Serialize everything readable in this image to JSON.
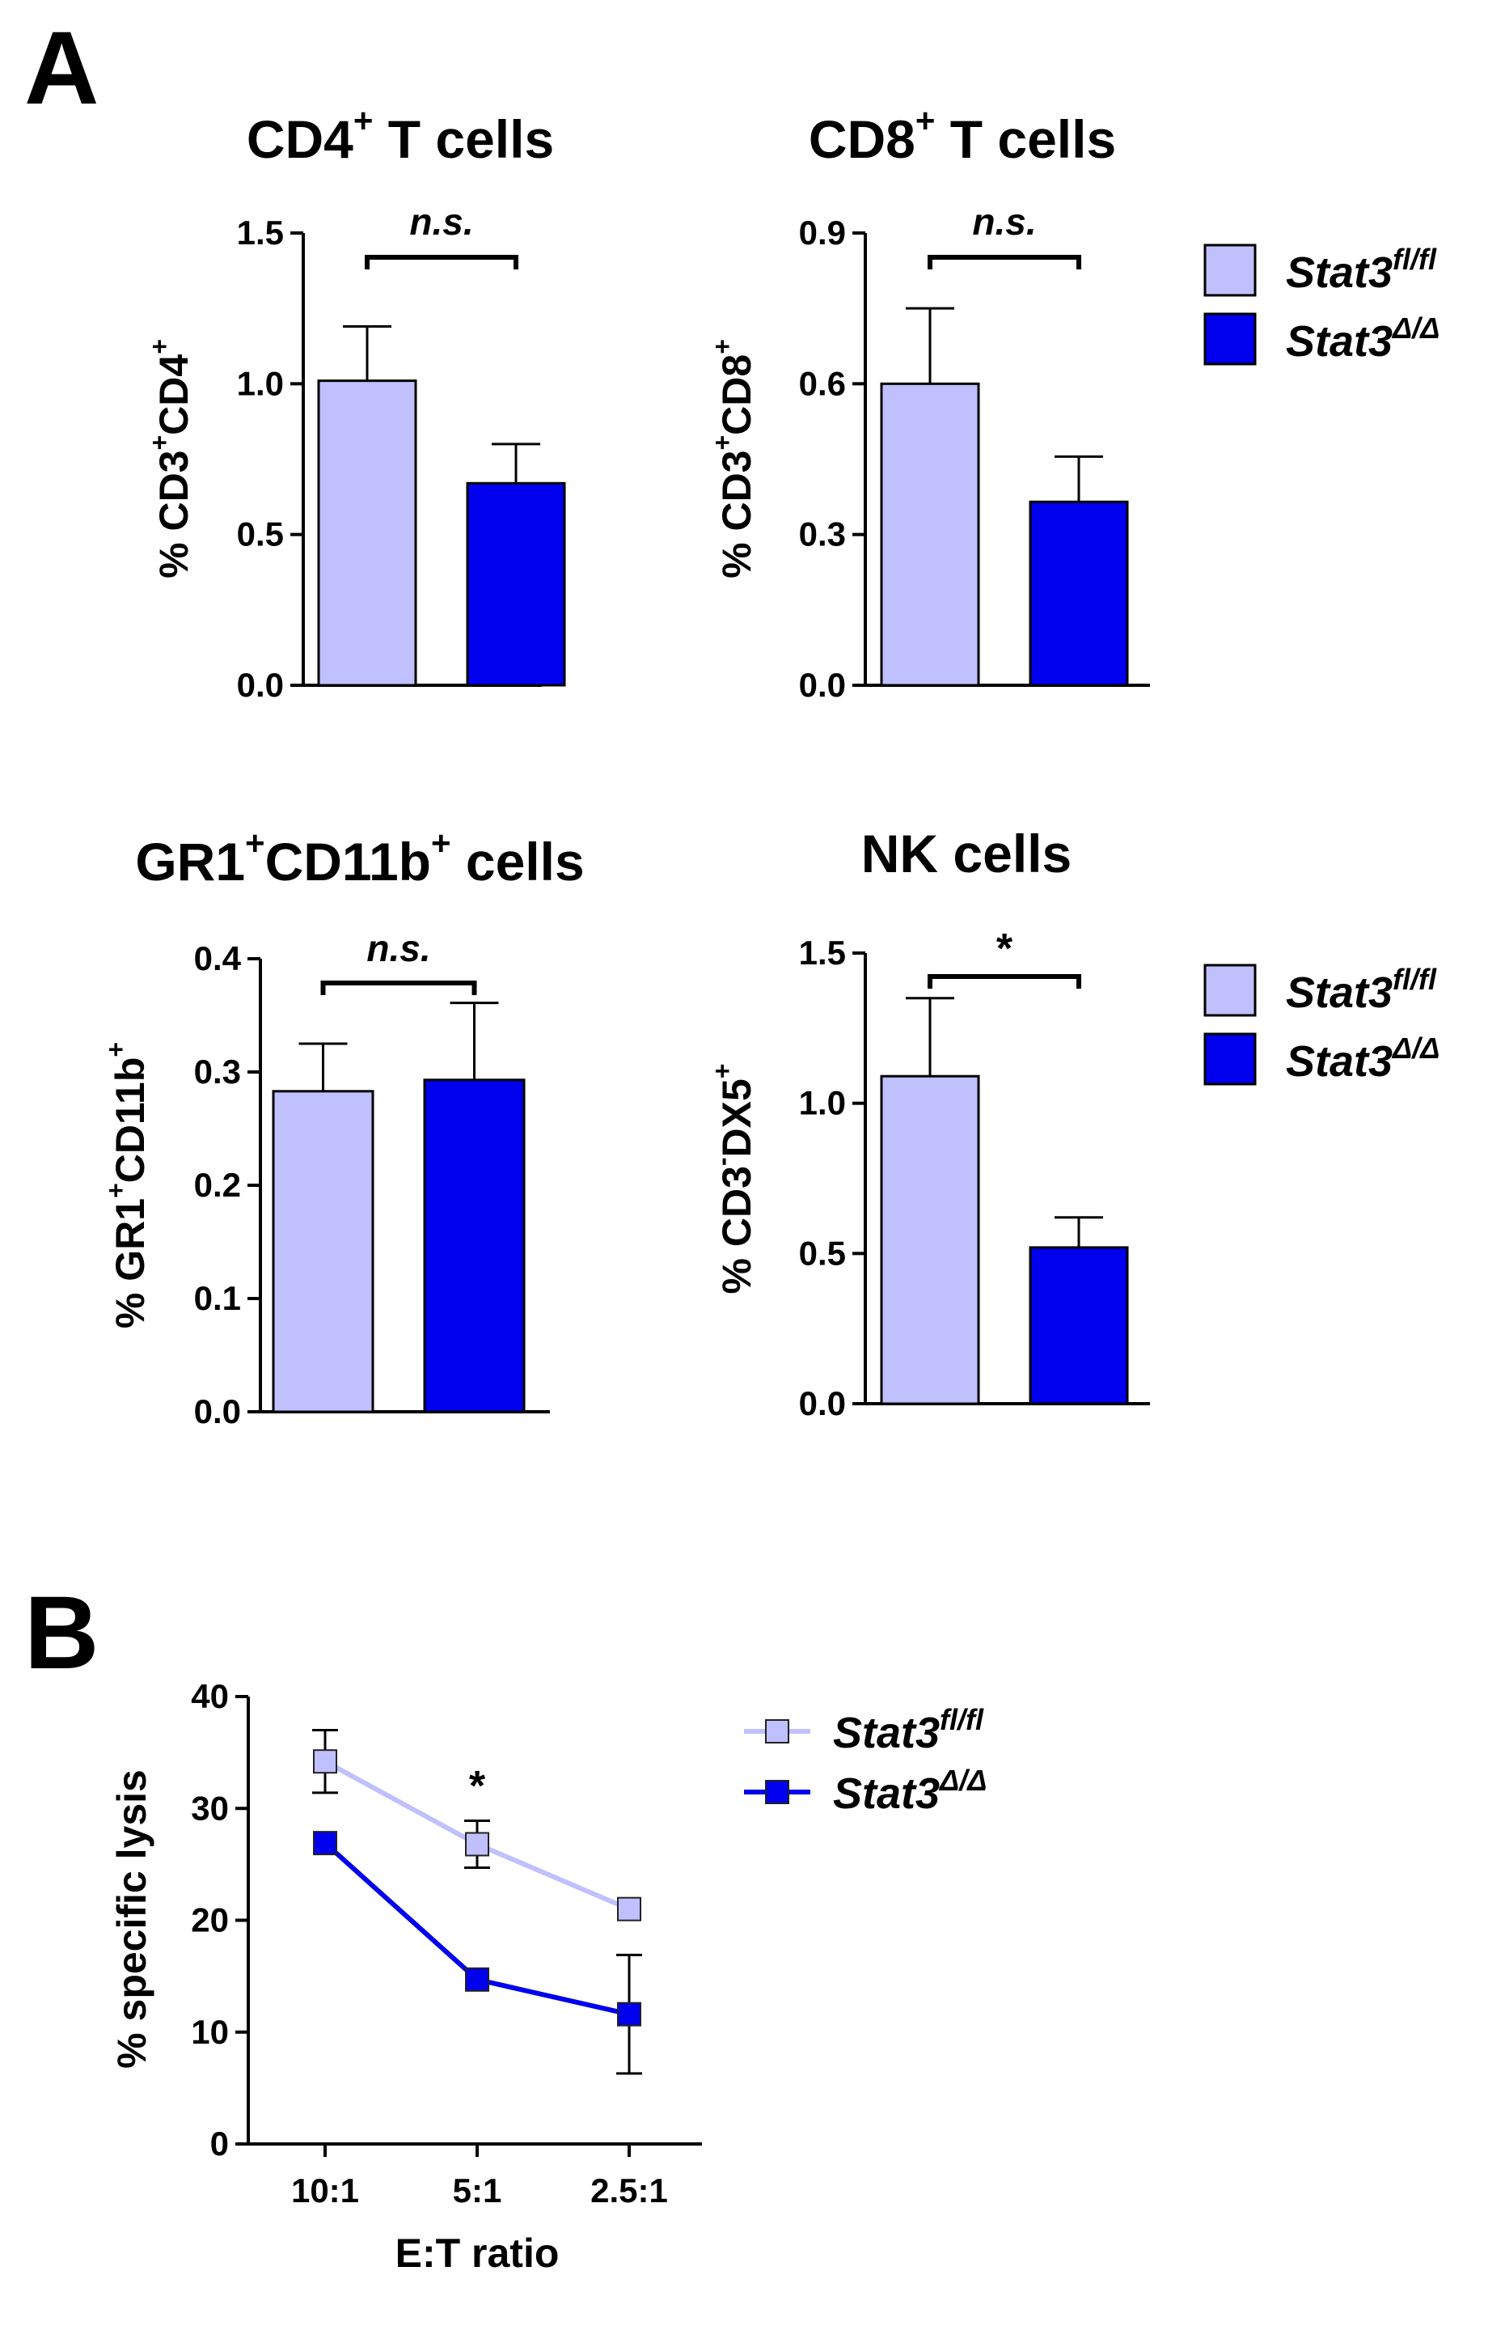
{
  "panels": {
    "a": "A",
    "b": "B"
  },
  "colors": {
    "fl": "#c0c0ff",
    "delta": "#0000ee",
    "outline": "#000000"
  },
  "legend": {
    "fl_base": "Stat3",
    "fl_sup": "fl/fl",
    "delta_base": "Stat3",
    "delta_sup": "Δ/Δ"
  },
  "chart_data": [
    {
      "type": "bar",
      "title_parts": [
        "CD4",
        "+",
        " T cells"
      ],
      "ylabel_parts": [
        "% CD3",
        "+",
        "CD4",
        "+"
      ],
      "categories": [
        "Stat3 fl/fl",
        "Stat3 Δ/Δ"
      ],
      "values": [
        1.01,
        0.67
      ],
      "errors": [
        0.18,
        0.13
      ],
      "ylim": [
        0,
        1.5
      ],
      "yticks": [
        0.0,
        0.5,
        1.0,
        1.5
      ],
      "ytick_labels": [
        "0.0",
        "0.5",
        "1.0",
        "1.5"
      ],
      "significance": "n.s."
    },
    {
      "type": "bar",
      "title_parts": [
        "CD8",
        "+",
        " T cells"
      ],
      "ylabel_parts": [
        "% CD3",
        "+",
        "CD8",
        "+"
      ],
      "categories": [
        "Stat3 fl/fl",
        "Stat3 Δ/Δ"
      ],
      "values": [
        0.6,
        0.365
      ],
      "errors": [
        0.15,
        0.09
      ],
      "ylim": [
        0,
        0.9
      ],
      "yticks": [
        0.0,
        0.3,
        0.6,
        0.9
      ],
      "ytick_labels": [
        "0.0",
        "0.3",
        "0.6",
        "0.9"
      ],
      "significance": "n.s."
    },
    {
      "type": "bar",
      "title_parts": [
        "GR1",
        "+",
        "CD11b",
        "+",
        " cells"
      ],
      "ylabel_parts": [
        "% GR1",
        "+",
        "CD11b",
        "+"
      ],
      "categories": [
        "Stat3 fl/fl",
        "Stat3 Δ/Δ"
      ],
      "values": [
        0.283,
        0.293
      ],
      "errors": [
        0.042,
        0.068
      ],
      "ylim": [
        0,
        0.4
      ],
      "yticks": [
        0.0,
        0.1,
        0.2,
        0.3,
        0.4
      ],
      "ytick_labels": [
        "0.0",
        "0.1",
        "0.2",
        "0.3",
        "0.4"
      ],
      "significance": "n.s."
    },
    {
      "type": "bar",
      "title_parts": [
        "NK cells"
      ],
      "ylabel_parts": [
        "% CD3",
        "-",
        "DX5",
        "+"
      ],
      "categories": [
        "Stat3 fl/fl",
        "Stat3 Δ/Δ"
      ],
      "values": [
        1.09,
        0.52
      ],
      "errors": [
        0.26,
        0.1
      ],
      "ylim": [
        0,
        1.5
      ],
      "yticks": [
        0.0,
        0.5,
        1.0,
        1.5
      ],
      "ytick_labels": [
        "0.0",
        "0.5",
        "1.0",
        "1.5"
      ],
      "significance": "*"
    },
    {
      "type": "line",
      "xlabel": "E:T ratio",
      "ylabel": "% specific lysis",
      "categories": [
        "10:1",
        "5:1",
        "2.5:1"
      ],
      "series": [
        {
          "name": "Stat3 fl/fl",
          "values": [
            34.2,
            26.8,
            21.0
          ],
          "errors": [
            2.8,
            2.1,
            0.5
          ]
        },
        {
          "name": "Stat3 Δ/Δ",
          "values": [
            26.9,
            14.7,
            11.6
          ],
          "errors": [
            0.5,
            0.5,
            5.3
          ]
        }
      ],
      "ylim": [
        0,
        40
      ],
      "yticks": [
        0,
        10,
        20,
        30,
        40
      ],
      "ytick_labels": [
        "0",
        "10",
        "20",
        "30",
        "40"
      ],
      "annotation": "*"
    }
  ]
}
